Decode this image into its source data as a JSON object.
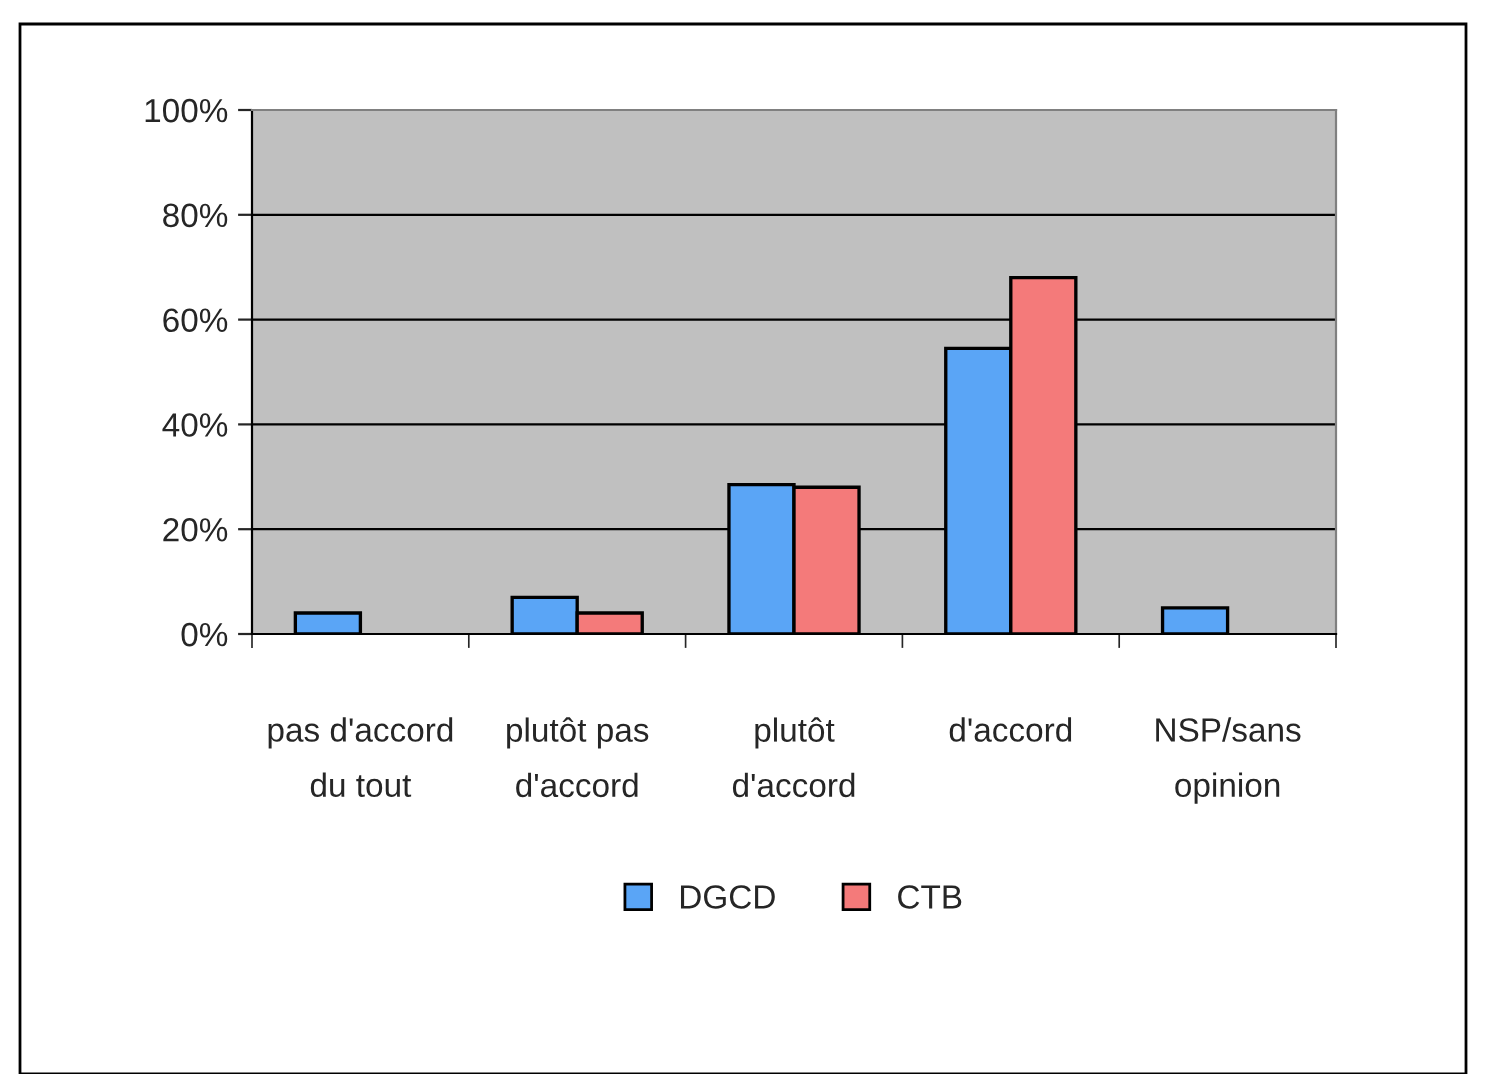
{
  "chart_data": {
    "type": "bar",
    "categories": [
      "pas d'accord\ndu tout",
      "plutôt pas\nd'accord",
      "plutôt\nd'accord",
      "d'accord",
      "NSP/sans\nopinion"
    ],
    "series": [
      {
        "name": "DGCD",
        "color": "#5aa5f6",
        "values": [
          4,
          7,
          28.5,
          54.5,
          5
        ]
      },
      {
        "name": "CTB",
        "color": "#f47a7a",
        "values": [
          null,
          4,
          28,
          68,
          null
        ]
      }
    ],
    "ylim": [
      0,
      100
    ],
    "yticks": [
      {
        "value": 0,
        "label": "0%"
      },
      {
        "value": 20,
        "label": "20%"
      },
      {
        "value": 40,
        "label": "40%"
      },
      {
        "value": 60,
        "label": "60%"
      },
      {
        "value": 80,
        "label": "80%"
      },
      {
        "value": 100,
        "label": "100%"
      }
    ],
    "grid": "y",
    "legend": "bottom"
  }
}
